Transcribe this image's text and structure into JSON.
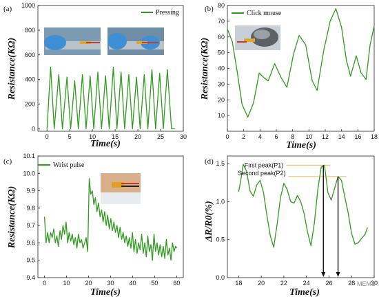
{
  "colors": {
    "line": "#2e9a1e",
    "axis": "#222222",
    "annotation_line": "#d8a020",
    "arrow": "#111111"
  },
  "watermark": "MEMS",
  "chart_data": [
    {
      "panel": "(a)",
      "type": "line",
      "xlabel": "Time(s)",
      "ylabel": "Resistance(KΩ)",
      "xlim": [
        -2,
        30
      ],
      "ylim": [
        -20,
        1000
      ],
      "xticks": [
        0,
        5,
        10,
        15,
        20,
        25,
        30
      ],
      "yticks": [
        0,
        200,
        400,
        600,
        800,
        1000
      ],
      "legend": [
        "Pressing"
      ],
      "legend_position": "top-right",
      "photos": 2,
      "series": [
        {
          "name": "Pressing",
          "x": [
            0,
            0.8,
            1.6,
            2.6,
            3.4,
            4.4,
            5.2,
            6.1,
            6.9,
            7.8,
            8.6,
            9.5,
            10.3,
            11.2,
            12.0,
            12.9,
            13.7,
            14.6,
            15.4,
            16.3,
            17.1,
            18.0,
            18.8,
            19.7,
            20.5,
            21.4,
            22.2,
            23.1,
            23.9,
            24.8,
            25.6,
            26.5,
            27.4,
            28.2
          ],
          "y": [
            0,
            500,
            0,
            440,
            0,
            420,
            0,
            390,
            0,
            440,
            0,
            430,
            0,
            460,
            0,
            430,
            0,
            500,
            0,
            460,
            0,
            440,
            0,
            420,
            0,
            440,
            0,
            480,
            0,
            450,
            0,
            480,
            0,
            0
          ]
        }
      ]
    },
    {
      "panel": "(b)",
      "type": "line",
      "xlabel": "Time(s)",
      "ylabel": "Resistance(KΩ)",
      "xlim": [
        0,
        18
      ],
      "ylim": [
        0,
        80
      ],
      "xticks": [
        0,
        2,
        4,
        6,
        8,
        10,
        12,
        14,
        16,
        18
      ],
      "yticks": [
        10,
        20,
        30,
        40,
        50,
        60,
        70,
        80
      ],
      "legend": [
        "Click mouse"
      ],
      "legend_position": "top-left",
      "photos": 1,
      "series": [
        {
          "name": "Click mouse",
          "x": [
            0,
            0.6,
            1.2,
            1.8,
            2.5,
            3.2,
            3.9,
            4.5,
            5.0,
            5.8,
            6.6,
            7.3,
            8.1,
            8.8,
            9.6,
            10.4,
            11.0,
            11.8,
            12.6,
            13.3,
            14.0,
            14.6,
            15.1,
            15.8,
            16.4,
            17.0,
            17.5,
            18.0
          ],
          "y": [
            65,
            57,
            38,
            17,
            9,
            18,
            37,
            34,
            32,
            43,
            34,
            28,
            49,
            61,
            55,
            32,
            26,
            51,
            70,
            78,
            66,
            45,
            35,
            48,
            37,
            33,
            55,
            67
          ]
        }
      ]
    },
    {
      "panel": "(c)",
      "type": "line",
      "xlabel": "Time(s)",
      "ylabel": "Resistance(KΩ)",
      "xlim": [
        -3,
        63
      ],
      "ylim": [
        9.4,
        10.1
      ],
      "xticks": [
        0,
        10,
        20,
        30,
        40,
        50,
        60
      ],
      "yticks": [
        9.4,
        9.5,
        9.6,
        9.7,
        9.8,
        9.9,
        10.0,
        10.1
      ],
      "legend": [
        "Wrist pulse"
      ],
      "legend_position": "top-left",
      "photos": 1,
      "series": [
        {
          "name": "Wrist pulse",
          "x": [
            0,
            0.7,
            1.4,
            2.1,
            2.8,
            3.5,
            4.2,
            4.9,
            5.6,
            6.3,
            7.0,
            7.7,
            8.4,
            9.1,
            9.8,
            10.5,
            11.2,
            11.9,
            12.6,
            13.3,
            14.0,
            14.7,
            15.4,
            16.1,
            16.8,
            17.5,
            18.2,
            18.9,
            19.6,
            20.3,
            21.0,
            21.7,
            22.4,
            23.1,
            23.8,
            24.5,
            25.2,
            25.9,
            26.6,
            27.3,
            28.0,
            28.7,
            29.4,
            30.1,
            30.8,
            31.5,
            32.2,
            32.9,
            33.6,
            34.3,
            35.0,
            35.7,
            36.4,
            37.1,
            37.8,
            38.5,
            39.2,
            39.9,
            40.6,
            41.3,
            42.0,
            42.7,
            43.4,
            44.1,
            44.8,
            45.5,
            46.2,
            46.9,
            47.6,
            48.3,
            49.0,
            49.7,
            50.4,
            51.1,
            51.8,
            52.5,
            53.2,
            53.9,
            54.6,
            55.3,
            56.0,
            56.7,
            57.4,
            58.1,
            58.8,
            59.5,
            60.0
          ],
          "y": [
            9.75,
            9.6,
            9.66,
            9.6,
            9.66,
            9.63,
            9.68,
            9.6,
            9.64,
            9.58,
            9.67,
            9.62,
            9.7,
            9.65,
            9.72,
            9.6,
            9.66,
            9.61,
            9.65,
            9.59,
            9.63,
            9.57,
            9.65,
            9.6,
            9.62,
            9.57,
            9.6,
            9.63,
            9.55,
            9.97,
            9.88,
            9.9,
            9.82,
            9.86,
            9.78,
            9.83,
            9.75,
            9.79,
            9.72,
            9.78,
            9.7,
            9.76,
            9.68,
            9.74,
            9.67,
            9.72,
            9.66,
            9.7,
            9.63,
            9.69,
            9.62,
            9.66,
            9.6,
            9.64,
            9.58,
            9.63,
            9.57,
            9.66,
            9.55,
            9.62,
            9.54,
            9.6,
            9.56,
            9.65,
            9.54,
            9.6,
            9.52,
            9.64,
            9.55,
            9.59,
            9.5,
            9.65,
            9.55,
            9.6,
            9.53,
            9.59,
            9.52,
            9.58,
            9.51,
            9.62,
            9.53,
            9.57,
            9.5,
            9.6,
            9.55,
            9.58,
            9.57
          ]
        }
      ]
    },
    {
      "panel": "(d)",
      "type": "line",
      "xlabel": "Time(s)",
      "ylabel": "ΔR/R0(%)",
      "xlim": [
        17,
        30
      ],
      "ylim": [
        0,
        1.6
      ],
      "xticks": [
        18,
        20,
        22,
        24,
        26,
        28,
        30
      ],
      "yticks": [
        0.0,
        0.5,
        1.0,
        1.5
      ],
      "legend": [],
      "series": [
        {
          "x": [
            18.0,
            18.2,
            18.4,
            18.7,
            19.0,
            19.3,
            19.6,
            19.9,
            20.2,
            20.5,
            20.8,
            21.1,
            21.4,
            21.7,
            22.0,
            22.3,
            22.6,
            22.9,
            23.2,
            23.5,
            23.8,
            24.1,
            24.4,
            24.7,
            25.0,
            25.3,
            25.6,
            25.9,
            26.2,
            26.5,
            26.8,
            27.1,
            27.4,
            27.7,
            28.0,
            28.3,
            28.6,
            28.9,
            29.2,
            29.4
          ],
          "y": [
            1.13,
            1.3,
            1.49,
            1.4,
            1.14,
            1.07,
            1.22,
            1.28,
            1.12,
            0.82,
            0.55,
            0.4,
            0.7,
            1.05,
            1.24,
            1.16,
            1.0,
            0.98,
            1.08,
            1.0,
            0.84,
            0.6,
            0.42,
            0.72,
            1.15,
            1.45,
            1.48,
            1.12,
            1.02,
            1.18,
            1.33,
            1.28,
            1.06,
            0.85,
            0.58,
            0.44,
            0.46,
            0.52,
            0.57,
            0.66
          ]
        }
      ],
      "annotations": [
        {
          "text": "First peak(P1)",
          "x": 25.5,
          "y": 1.48
        },
        {
          "text": "Second peak(P2)",
          "x": 26.8,
          "y": 1.33
        }
      ]
    }
  ]
}
